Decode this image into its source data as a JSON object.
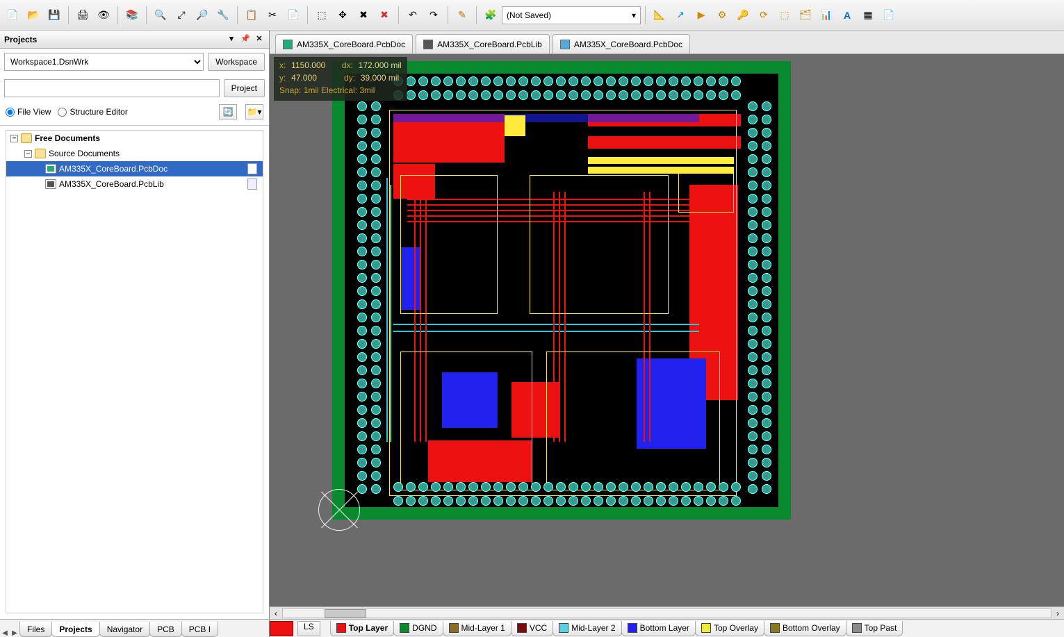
{
  "toolbar": {
    "buttons": [
      "📄",
      "📂",
      "💾",
      "🖨",
      "👁",
      "📚",
      "🔍",
      "⤢",
      "🔎",
      "🔧",
      "📋",
      "✂",
      "📄",
      "➕",
      "✳",
      "✖",
      "↶",
      "↷",
      "✏",
      "🧩"
    ],
    "saved_label": "(Not Saved)",
    "right_buttons": [
      "📐",
      "↗",
      "▶",
      "⚙",
      "🔑",
      "⟳",
      "⬚",
      "🗂",
      "📊",
      "A",
      "▦",
      "📄"
    ]
  },
  "projects_panel": {
    "title": "Projects",
    "workspace_value": "Workspace1.DsnWrk",
    "workspace_btn": "Workspace",
    "project_btn": "Project",
    "file_view": "File View",
    "structure_editor": "Structure Editor",
    "tree": {
      "root": "Free Documents",
      "group": "Source Documents",
      "files": [
        {
          "name": "AM335X_CoreBoard.PcbDoc",
          "type": "pcb",
          "selected": true
        },
        {
          "name": "AM335X_CoreBoard.PcbLib",
          "type": "lib",
          "selected": false
        }
      ]
    }
  },
  "doc_tabs": [
    {
      "label": "AM335X_CoreBoard.PcbDoc",
      "icon": "pcb"
    },
    {
      "label": "AM335X_CoreBoard.PcbLib",
      "icon": "lib"
    },
    {
      "label": "AM335X_CoreBoard.PcbDoc",
      "icon": "cmp"
    }
  ],
  "hud": {
    "x_label": "x:",
    "x": "1150.000",
    "dx_label": "dx:",
    "dx": "172.000 mil",
    "y_label": "y:",
    "y": "47.000",
    "dy_label": "dy:",
    "dy": "39.000 mil",
    "snap": "Snap: 1mil Electrical: 3mil"
  },
  "bottom_left_tabs": [
    "Files",
    "Projects",
    "Navigator",
    "PCB",
    "PCB I"
  ],
  "bottom_left_active": 1,
  "ls_label": "LS",
  "layers": [
    {
      "name": "Top Layer",
      "color": "#ee1111",
      "current": true
    },
    {
      "name": "DGND",
      "color": "#0a8a2e"
    },
    {
      "name": "Mid-Layer 1",
      "color": "#8a6d1f"
    },
    {
      "name": "VCC",
      "color": "#7a0b0b"
    },
    {
      "name": "Mid-Layer 2",
      "color": "#5ad0e0"
    },
    {
      "name": "Bottom Layer",
      "color": "#2222ee"
    },
    {
      "name": "Top Overlay",
      "color": "#f2e63a"
    },
    {
      "name": "Bottom Overlay",
      "color": "#8a7a1f"
    },
    {
      "name": "Top Past",
      "color": "#8a8a8a"
    }
  ],
  "colors": {
    "panel_bg": "#ffffff",
    "canvas_bg": "#6b6b6b",
    "board_green": "#0a8a2e",
    "board_black": "#000000",
    "silk_yellow": "#ffeb3b",
    "top_copper": "#ee1111",
    "bot_copper": "#2222ee",
    "mid_cyan": "#28c8d8",
    "via_teal": "#1fa89a"
  }
}
